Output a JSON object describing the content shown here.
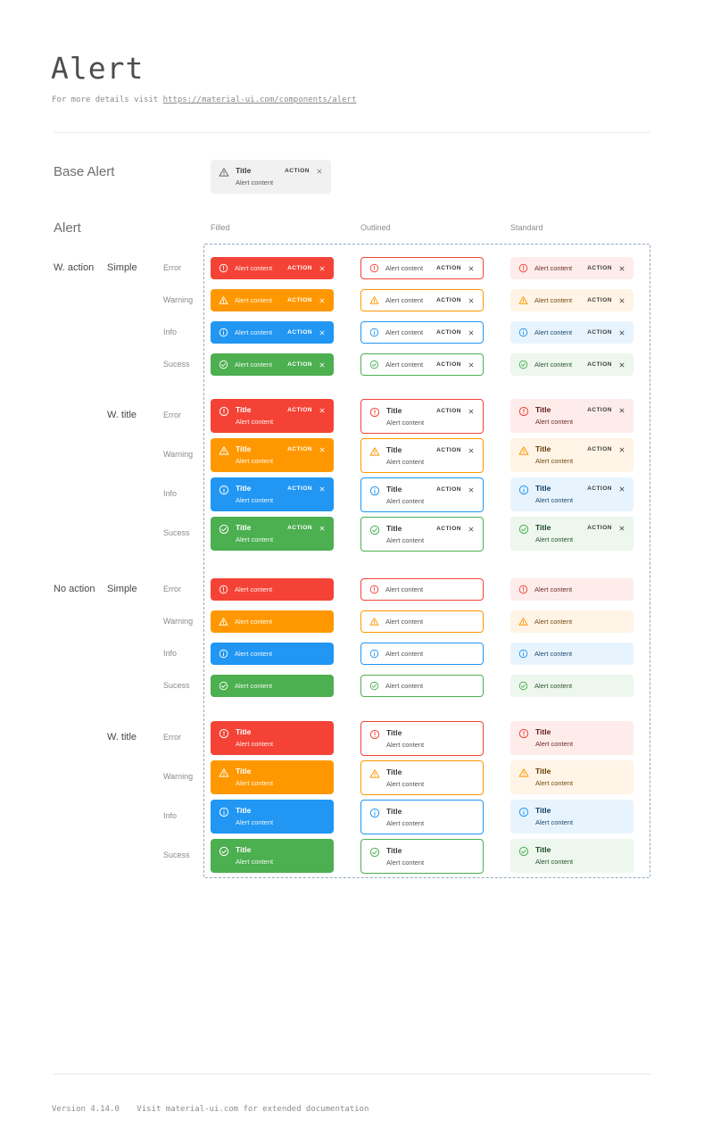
{
  "page": {
    "title": "Alert",
    "subtitle_prefix": "For more details visit ",
    "subtitle_link": "https://material-ui.com/components/alert",
    "footer_version": "Version 4.14.0",
    "footer_note": "Visit material-ui.com for extended documentation"
  },
  "base_alert_section": {
    "label": "Base Alert",
    "alert": {
      "icon": "warning-icon",
      "title": "Title",
      "content": "Alert content",
      "action_label": "ACTION",
      "close_icon": "close-icon",
      "bg": "#f1f1f1"
    }
  },
  "alert_section": {
    "label": "Alert",
    "column_headers": [
      "Filled",
      "Outlined",
      "Standard"
    ],
    "alert_text": {
      "title": "Title",
      "content": "Alert content",
      "action_label": "ACTION",
      "close_icon": "close-icon"
    },
    "severities": [
      {
        "label": "Error",
        "icon": "error-icon",
        "main": "#f44336",
        "standard_bg": "#fdecea",
        "standard_text": "#611a15"
      },
      {
        "label": "Warning",
        "icon": "warning-icon",
        "main": "#ff9800",
        "standard_bg": "#fff4e5",
        "standard_text": "#663c00"
      },
      {
        "label": "Info",
        "icon": "info-icon",
        "main": "#2196f3",
        "standard_bg": "#e8f4fd",
        "standard_text": "#0d3c61"
      },
      {
        "label": "Sucess",
        "icon": "success-icon",
        "main": "#4caf50",
        "standard_bg": "#edf7ed",
        "standard_text": "#1e4620"
      }
    ],
    "row_groups": [
      {
        "action_label": "W. action",
        "variant_label": "Simple",
        "with_action": true,
        "with_title": false
      },
      {
        "action_label": "",
        "variant_label": "W. title",
        "with_action": true,
        "with_title": true
      },
      {
        "action_label": "No action",
        "variant_label": "Simple",
        "with_action": false,
        "with_title": false
      },
      {
        "action_label": "",
        "variant_label": "W. title",
        "with_action": false,
        "with_title": true
      }
    ]
  },
  "colors": {
    "dashed_border": "#93a9bb",
    "divider": "#e9e9e9",
    "filled_text": "#ffffff",
    "base_bg": "#f1f1f1"
  }
}
